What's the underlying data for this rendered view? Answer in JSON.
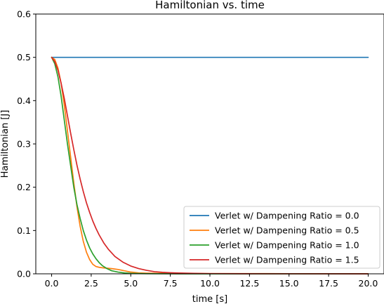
{
  "chart_data": {
    "type": "line",
    "title": "Hamiltonian vs. time",
    "xlabel": "time [s]",
    "ylabel": "Hamiltonian [J]",
    "xlim": [
      -1.0,
      21.0
    ],
    "ylim": [
      0.0,
      0.6
    ],
    "xticks": [
      0.0,
      2.5,
      5.0,
      7.5,
      10.0,
      12.5,
      15.0,
      17.5,
      20.0
    ],
    "xtick_labels": [
      "0.0",
      "2.5",
      "5.0",
      "7.5",
      "10.0",
      "12.5",
      "15.0",
      "17.5",
      "20.0"
    ],
    "yticks": [
      0.0,
      0.1,
      0.2,
      0.3,
      0.4,
      0.5,
      0.6
    ],
    "ytick_labels": [
      "0.0",
      "0.1",
      "0.2",
      "0.3",
      "0.4",
      "0.5",
      "0.6"
    ],
    "grid": false,
    "legend_position": "lower-right",
    "series": [
      {
        "name": "Verlet w/ Dampening Ratio = 0.0",
        "color": "#1f77b4",
        "x": [
          0.0,
          20.0
        ],
        "y": [
          0.5,
          0.5
        ]
      },
      {
        "name": "Verlet w/ Dampening Ratio = 0.5",
        "color": "#ff7f0e",
        "x": [
          0.0,
          0.2,
          0.4,
          0.6,
          0.8,
          1.0,
          1.2,
          1.4,
          1.6,
          1.8,
          2.0,
          2.2,
          2.4,
          2.6,
          2.8,
          3.0,
          3.2,
          3.5,
          3.8,
          4.2,
          4.6,
          5.0,
          5.5,
          6.0,
          7.0,
          8.0,
          10.0,
          15.0,
          20.0
        ],
        "y": [
          0.5,
          0.495,
          0.475,
          0.44,
          0.39,
          0.33,
          0.27,
          0.21,
          0.155,
          0.11,
          0.075,
          0.05,
          0.033,
          0.022,
          0.017,
          0.015,
          0.014,
          0.013,
          0.012,
          0.01,
          0.007,
          0.004,
          0.002,
          0.0015,
          0.001,
          0.0008,
          0.0005,
          0.0003,
          0.0002
        ]
      },
      {
        "name": "Verlet w/ Dampening Ratio = 1.0",
        "color": "#2ca02c",
        "x": [
          0.0,
          0.2,
          0.4,
          0.6,
          0.8,
          1.0,
          1.2,
          1.4,
          1.6,
          1.8,
          2.0,
          2.2,
          2.4,
          2.6,
          2.8,
          3.0,
          3.2,
          3.5,
          3.8,
          4.2,
          4.6,
          5.0,
          5.5,
          6.0,
          7.0,
          8.0,
          10.0,
          15.0,
          20.0
        ],
        "y": [
          0.5,
          0.485,
          0.455,
          0.41,
          0.355,
          0.3,
          0.25,
          0.2,
          0.16,
          0.128,
          0.1,
          0.078,
          0.06,
          0.046,
          0.035,
          0.026,
          0.019,
          0.012,
          0.007,
          0.004,
          0.002,
          0.001,
          0.0006,
          0.0003,
          0.0001,
          0.0,
          0.0,
          0.0,
          0.0
        ]
      },
      {
        "name": "Verlet w/ Dampening Ratio = 1.5",
        "color": "#d62728",
        "x": [
          0.0,
          0.2,
          0.4,
          0.6,
          0.8,
          1.0,
          1.2,
          1.4,
          1.6,
          1.8,
          2.0,
          2.2,
          2.4,
          2.6,
          2.8,
          3.0,
          3.3,
          3.6,
          4.0,
          4.5,
          5.0,
          5.5,
          6.0,
          6.5,
          7.0,
          7.5,
          8.0,
          9.0,
          10.0,
          12.0,
          15.0,
          20.0
        ],
        "y": [
          0.5,
          0.49,
          0.47,
          0.44,
          0.405,
          0.365,
          0.325,
          0.287,
          0.251,
          0.219,
          0.19,
          0.164,
          0.142,
          0.122,
          0.105,
          0.09,
          0.071,
          0.056,
          0.04,
          0.027,
          0.018,
          0.012,
          0.008,
          0.005,
          0.0035,
          0.0025,
          0.0018,
          0.001,
          0.0005,
          0.0002,
          0.0001,
          0.0
        ]
      }
    ]
  }
}
